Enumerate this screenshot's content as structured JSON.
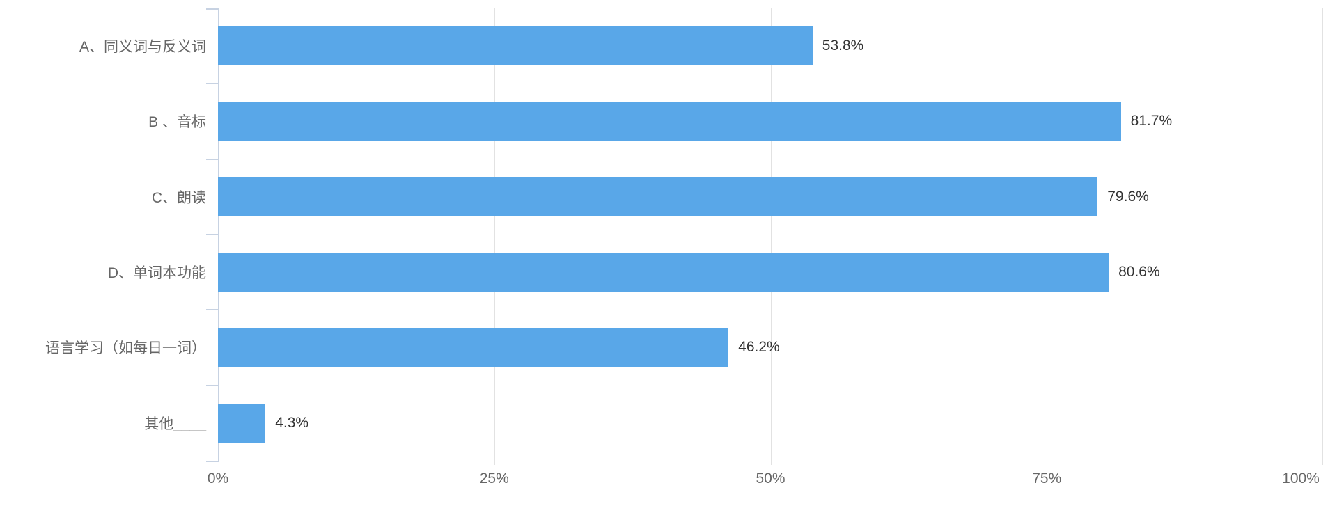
{
  "chart_data": {
    "type": "bar",
    "orientation": "horizontal",
    "title": "",
    "xlabel": "",
    "ylabel": "",
    "categories": [
      "A、同义词与反义词",
      "B 、音标",
      "C、朗读",
      "D、单词本功能",
      "语言学习（如每日一词）",
      "其他____"
    ],
    "values": [
      53.8,
      81.7,
      79.6,
      80.6,
      46.2,
      4.3
    ],
    "value_labels": [
      "53.8%",
      "81.7%",
      "79.6%",
      "80.6%",
      "46.2%",
      "4.3%"
    ],
    "x_ticks": [
      "0%",
      "25%",
      "50%",
      "75%",
      "100%"
    ],
    "xlim": [
      0,
      100
    ],
    "grid": true,
    "legend": "none",
    "bar_color": "#59A7E8",
    "axis_color": "#C7D2E2",
    "grid_color": "#E2E2E2"
  }
}
